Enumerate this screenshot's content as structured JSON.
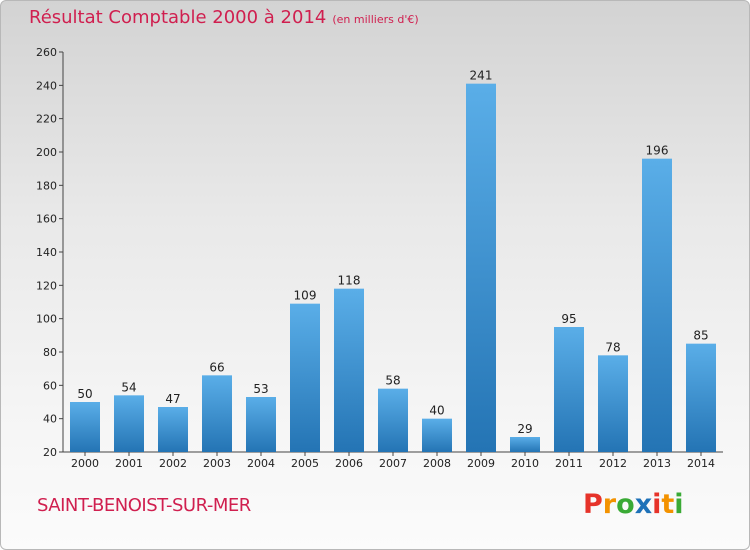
{
  "header": {
    "title": "Résultat Comptable 2000 à 2014",
    "unit": "(en milliers d'€)"
  },
  "footer": {
    "commune": "SAINT-BENOIST-SUR-MER",
    "logo_letters": [
      "P",
      "r",
      "o",
      "x",
      "i",
      "t",
      "i"
    ],
    "logo_colors": [
      "#e6332a",
      "#f39200",
      "#3aaa35",
      "#1d71b8",
      "#e6332a",
      "#f39200",
      "#3aaa35"
    ]
  },
  "colors": {
    "bar_light": "#5aaee8",
    "bar_dark": "#2474b4",
    "title": "#d01f4f"
  },
  "chart_data": {
    "type": "bar",
    "title": "Résultat Comptable 2000 à 2014",
    "subtitle": "(en milliers d'€)",
    "xlabel": "",
    "ylabel": "",
    "categories": [
      "2000",
      "2001",
      "2002",
      "2003",
      "2004",
      "2005",
      "2006",
      "2007",
      "2008",
      "2009",
      "2010",
      "2011",
      "2012",
      "2013",
      "2014"
    ],
    "values": [
      50,
      54,
      47,
      66,
      53,
      109,
      118,
      58,
      40,
      241,
      29,
      95,
      78,
      196,
      85
    ],
    "ylim": [
      20,
      260
    ],
    "yticks": [
      20,
      40,
      60,
      80,
      100,
      120,
      140,
      160,
      180,
      200,
      220,
      240,
      260
    ],
    "grid": false,
    "data_labels": true
  }
}
